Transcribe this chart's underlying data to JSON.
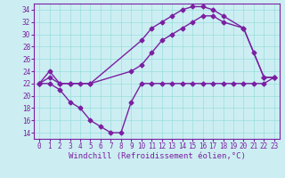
{
  "line1_x": [
    0,
    1,
    2,
    3,
    4,
    5,
    10,
    11,
    12,
    13,
    14,
    15,
    16,
    17,
    18,
    20,
    22,
    23
  ],
  "line1_y": [
    22,
    23,
    22,
    22,
    22,
    22,
    29,
    31,
    32,
    33,
    34,
    34.5,
    34.5,
    34,
    33,
    31,
    23,
    23
  ],
  "line2_x": [
    0,
    1,
    2,
    3,
    5,
    9,
    10,
    11,
    12,
    13,
    14,
    15,
    16,
    17,
    18,
    20,
    21,
    22,
    23
  ],
  "line2_y": [
    22,
    24,
    22,
    22,
    22,
    24,
    25,
    27,
    29,
    30,
    31,
    32,
    33,
    33,
    32,
    31,
    27,
    23,
    23
  ],
  "line3_x": [
    0,
    1,
    2,
    3,
    4,
    5,
    6,
    7,
    8,
    9,
    10,
    11,
    12,
    13,
    14,
    15,
    16,
    17,
    18,
    19,
    20,
    21,
    22,
    23
  ],
  "line3_y": [
    22,
    22,
    21,
    19,
    18,
    16,
    15,
    14,
    14,
    19,
    22,
    22,
    22,
    22,
    22,
    22,
    22,
    22,
    22,
    22,
    22,
    22,
    22,
    23
  ],
  "color": "#7b1fa2",
  "bg_color": "#cceef2",
  "grid_color": "#99dddd",
  "xlabel": "Windchill (Refroidissement éolien,°C)",
  "xlim": [
    -0.5,
    23.5
  ],
  "ylim": [
    13,
    35
  ],
  "yticks": [
    14,
    16,
    18,
    20,
    22,
    24,
    26,
    28,
    30,
    32,
    34
  ],
  "xticks": [
    0,
    1,
    2,
    3,
    4,
    5,
    6,
    7,
    8,
    9,
    10,
    11,
    12,
    13,
    14,
    15,
    16,
    17,
    18,
    19,
    20,
    21,
    22,
    23
  ],
  "tick_fontsize": 5.5,
  "xlabel_fontsize": 6.5,
  "marker": "D",
  "markersize": 2.5,
  "linewidth": 1.0
}
